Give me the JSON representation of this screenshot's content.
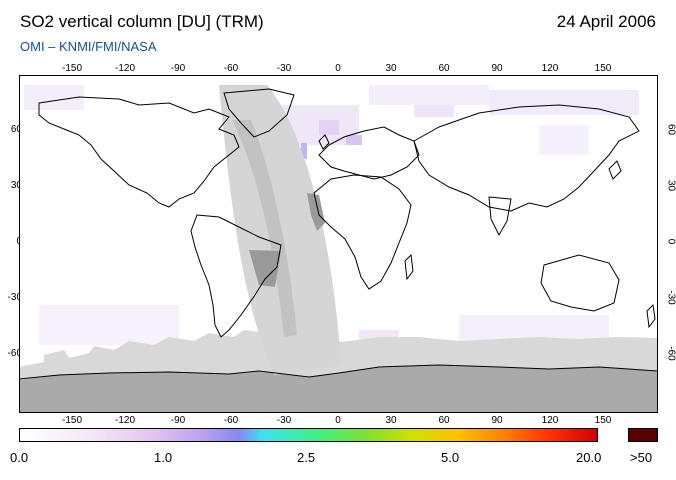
{
  "header": {
    "title": "SO2 vertical column [DU] (TRM)",
    "date": "24 April 2006",
    "subtitle": "OMI  –  KNMI/FMI/NASA"
  },
  "map": {
    "lon_ticks": [
      "-150",
      "-120",
      "-90",
      "-60",
      "-30",
      "0",
      "30",
      "60",
      "90",
      "120",
      "150"
    ],
    "lat_ticks": [
      "60",
      "30",
      "0",
      "-30",
      "-60"
    ],
    "colors": {
      "background": "#ffffff",
      "no_data_dark": "#aaaaaa",
      "no_data_light": "#d8d8d8",
      "coast": "#000000",
      "frame": "#000000"
    }
  },
  "colorbar": {
    "labels": [
      "0.0",
      "1.0",
      "2.5",
      "5.0",
      "20.0"
    ],
    "overflow_label": ">50",
    "overflow_color": "#5a0000"
  }
}
